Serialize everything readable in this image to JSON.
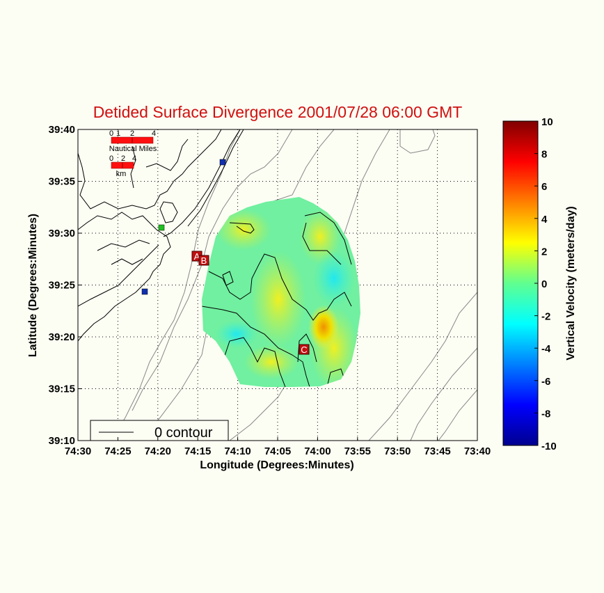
{
  "chart_data": {
    "type": "heatmap",
    "title": "Detided Surface Divergence 2001/07/28 06:00 GMT",
    "xlabel": "Longitude (Degrees:Minutes)",
    "ylabel": "Latitude (Degrees:Minutes)",
    "x_ticks": [
      "74:30",
      "74:25",
      "74:20",
      "74:15",
      "74:10",
      "74:05",
      "74:00",
      "73:55",
      "73:50",
      "73:45",
      "73:40"
    ],
    "y_ticks": [
      "39:40",
      "39:35",
      "39:30",
      "39:25",
      "39:20",
      "39:15",
      "39:10"
    ],
    "grid": true,
    "legend": {
      "label": "0 contour",
      "placement": "bottom-left"
    },
    "colorbar": {
      "label": "Vertical Velocity (meters/day)",
      "range": [
        -10,
        10
      ],
      "ticks": [
        "10",
        "8",
        "6",
        "4",
        "2",
        "0",
        "-2",
        "-4",
        "-6",
        "-8",
        "-10"
      ],
      "colormap": "jet"
    },
    "scale_bars": [
      {
        "unit": "Nautical Miles",
        "ticks": [
          "0",
          "1",
          "2",
          "4"
        ]
      },
      {
        "unit": "km",
        "ticks": [
          "0",
          "2",
          "4"
        ]
      }
    ],
    "site_markers": [
      {
        "label": "A",
        "lon": "74:15",
        "lat": "39:28"
      },
      {
        "label": "B",
        "lon": "74:14",
        "lat": "39:27"
      },
      {
        "label": "C",
        "lon": "73:58",
        "lat": "39:19"
      }
    ],
    "station_markers": [
      {
        "color": "#1030b0",
        "lon": "74:12",
        "lat": "39:37"
      },
      {
        "color": "#1030b0",
        "lon": "74:22",
        "lat": "39:24"
      },
      {
        "color": "#20c020",
        "lon": "74:20",
        "lat": "39:31"
      }
    ],
    "value_summary": "Field ranges roughly -3 to +6 m/day; maximum near 73:59 W 39:21 N"
  },
  "colors": {
    "title": "#d01010",
    "marker": "#c01010",
    "background": "#fcfdf3"
  }
}
